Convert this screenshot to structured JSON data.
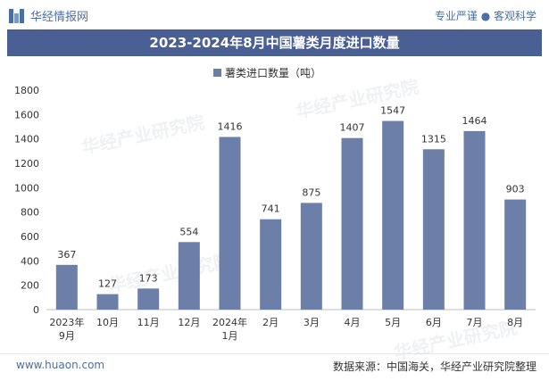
{
  "brand": {
    "name": "华经情报网",
    "slogan": "专业严谨 ● 客观科学"
  },
  "footer": {
    "site": "www.huaon.com",
    "source": "数据来源：中国海关，华经产业研究院整理"
  },
  "watermark": {
    "text": "华经产业研究院",
    "url": "www.huaon.com"
  },
  "colors": {
    "bar": "#6b7fa8",
    "title_bg": "#4a5f94",
    "accent": "#4a6fa5"
  },
  "chart_data": {
    "type": "bar",
    "title": "2023-2024年8月中国薯类月度进口数量",
    "categories": [
      "2023年\n9月",
      "10月",
      "11月",
      "12月",
      "2024年\n1月",
      "2月",
      "3月",
      "4月",
      "5月",
      "6月",
      "7月",
      "8月"
    ],
    "series": [
      {
        "name": "薯类进口数量（吨）",
        "values": [
          367,
          127,
          173,
          554,
          1416,
          741,
          875,
          1407,
          1547,
          1315,
          1464,
          903
        ]
      }
    ],
    "ylim": [
      0,
      1800
    ],
    "yticks": [
      0,
      200,
      400,
      600,
      800,
      1000,
      1200,
      1400,
      1600,
      1800
    ],
    "grid": false,
    "legend": "top"
  }
}
